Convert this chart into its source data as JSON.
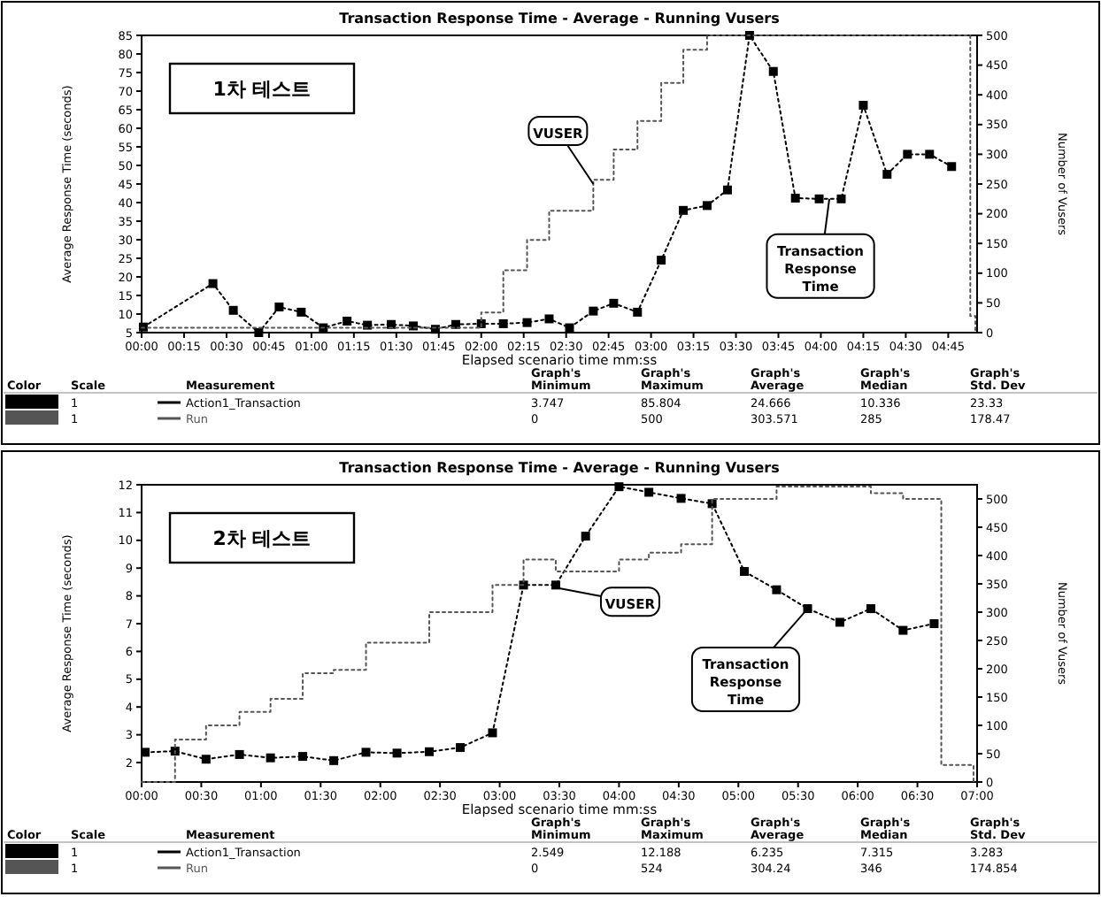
{
  "chart_data": [
    {
      "type": "line",
      "title": "Transaction Response Time - Average - Running Vusers",
      "xlabel": "Elapsed scenario time mm:ss",
      "ylabel": "Average Response Time (seconds)",
      "y2label": "Number of Vusers",
      "xlim": [
        0,
        4.92
      ],
      "ylim": [
        5,
        85
      ],
      "y2lim": [
        0,
        500
      ],
      "xticks": [
        {
          "value": 0,
          "label": "00:00"
        },
        {
          "value": 0.25,
          "label": "00:15"
        },
        {
          "value": 0.5,
          "label": "00:30"
        },
        {
          "value": 0.75,
          "label": "00:45"
        },
        {
          "value": 1,
          "label": "01:00"
        },
        {
          "value": 1.25,
          "label": "01:15"
        },
        {
          "value": 1.5,
          "label": "01:30"
        },
        {
          "value": 1.75,
          "label": "01:45"
        },
        {
          "value": 2,
          "label": "02:00"
        },
        {
          "value": 2.25,
          "label": "02:15"
        },
        {
          "value": 2.5,
          "label": "02:30"
        },
        {
          "value": 2.75,
          "label": "02:45"
        },
        {
          "value": 3,
          "label": "03:00"
        },
        {
          "value": 3.25,
          "label": "03:15"
        },
        {
          "value": 3.5,
          "label": "03:30"
        },
        {
          "value": 3.75,
          "label": "03:45"
        },
        {
          "value": 4,
          "label": "04:00"
        },
        {
          "value": 4.25,
          "label": "04:15"
        },
        {
          "value": 4.5,
          "label": "04:30"
        },
        {
          "value": 4.75,
          "label": "04:45"
        }
      ],
      "yticks": [
        5,
        10,
        15,
        20,
        25,
        30,
        35,
        40,
        45,
        50,
        55,
        60,
        65,
        70,
        75,
        80,
        85
      ],
      "y2ticks": [
        0,
        50,
        100,
        150,
        200,
        250,
        300,
        350,
        400,
        450,
        500
      ],
      "legend": "bottom",
      "series": [
        {
          "name": "Action1_Transaction",
          "type": "line",
          "color": "#000000",
          "marker": "square",
          "line_style": "dotted",
          "x": [
            0.01,
            0.42,
            0.54,
            0.69,
            0.81,
            0.94,
            1.07,
            1.21,
            1.33,
            1.47,
            1.6,
            1.73,
            1.85,
            2.0,
            2.13,
            2.27,
            2.4,
            2.52,
            2.66,
            2.78,
            2.92,
            3.06,
            3.19,
            3.33,
            3.45,
            3.58,
            3.72,
            3.85,
            3.99,
            4.12,
            4.25,
            4.39,
            4.51,
            4.64,
            4.77
          ],
          "values": [
            6.5,
            18.2,
            11,
            5,
            11.9,
            10.5,
            6.3,
            8.1,
            7,
            7.2,
            6.8,
            5.9,
            7.2,
            7.4,
            7.4,
            7.7,
            8.7,
            6.3,
            10.8,
            12.9,
            10.5,
            24.5,
            37.9,
            39.2,
            43.4,
            85,
            75.3,
            41.2,
            41,
            41,
            66.2,
            47.6,
            53,
            53,
            49.7
          ]
        },
        {
          "name": "Run",
          "type": "step",
          "axis": "y2",
          "color": "#555555",
          "marker": "none",
          "line_style": "dotted",
          "x": [
            0,
            2.0,
            2.13,
            2.27,
            2.4,
            2.66,
            2.78,
            2.92,
            3.06,
            3.19,
            3.33,
            4.88,
            4.91
          ],
          "values": [
            8,
            34,
            105,
            156,
            205,
            257,
            308,
            356,
            420,
            476,
            500,
            28,
            0
          ]
        }
      ],
      "annotations": [
        "1차 테스트",
        {
          "text": "VUSER",
          "x": 2.66,
          "y": 45
        },
        {
          "text": "Transaction Response Time",
          "x": 4.05,
          "y": 41
        },
        "Color",
        "Scale",
        "Measurement",
        "Graph's Minimum",
        "Graph's Maximum",
        "Graph's Average",
        "Graph's Median",
        "Graph's Std. Dev",
        "1",
        "3.747",
        "85.804",
        "24.666",
        "10.336",
        "23.33",
        "1",
        "0",
        "500",
        "303.571",
        "285",
        "178.47"
      ]
    },
    {
      "type": "line",
      "title": "Transaction Response Time - Average - Running Vusers",
      "xlabel": "Elapsed scenario time mm:ss",
      "ylabel": "Average Response Time (seconds)",
      "y2label": "Number of Vusers",
      "xlim": [
        0,
        7
      ],
      "ylim": [
        1.3,
        12
      ],
      "y2lim": [
        0,
        525
      ],
      "xticks": [
        {
          "value": 0,
          "label": "00:00"
        },
        {
          "value": 0.5,
          "label": "00:30"
        },
        {
          "value": 1,
          "label": "01:00"
        },
        {
          "value": 1.5,
          "label": "01:30"
        },
        {
          "value": 2,
          "label": "02:00"
        },
        {
          "value": 2.5,
          "label": "02:30"
        },
        {
          "value": 3,
          "label": "03:00"
        },
        {
          "value": 3.5,
          "label": "03:30"
        },
        {
          "value": 4,
          "label": "04:00"
        },
        {
          "value": 4.5,
          "label": "04:30"
        },
        {
          "value": 5,
          "label": "05:00"
        },
        {
          "value": 5.5,
          "label": "05:30"
        },
        {
          "value": 6,
          "label": "06:00"
        },
        {
          "value": 6.5,
          "label": "06:30"
        },
        {
          "value": 7,
          "label": "07:00"
        }
      ],
      "yticks": [
        2,
        3,
        4,
        5,
        6,
        7,
        8,
        9,
        10,
        11,
        12
      ],
      "y2ticks": [
        0,
        50,
        100,
        150,
        200,
        250,
        300,
        350,
        400,
        450,
        500
      ],
      "legend": "bottom",
      "series": [
        {
          "name": "Action1_Transaction",
          "type": "line",
          "color": "#000000",
          "marker": "square",
          "line_style": "dotted",
          "x": [
            0.03,
            0.28,
            0.54,
            0.82,
            1.08,
            1.35,
            1.61,
            1.88,
            2.14,
            2.41,
            2.67,
            2.94,
            3.2,
            3.47,
            3.72,
            4.0,
            4.25,
            4.52,
            4.78,
            5.05,
            5.32,
            5.58,
            5.85,
            6.11,
            6.38,
            6.64
          ],
          "values": [
            2.37,
            2.41,
            2.12,
            2.29,
            2.17,
            2.22,
            2.07,
            2.37,
            2.34,
            2.39,
            2.54,
            3.07,
            8.39,
            8.39,
            10.15,
            11.93,
            11.73,
            11.51,
            11.32,
            8.88,
            8.22,
            7.54,
            7.05,
            7.54,
            6.76,
            7.0
          ]
        },
        {
          "name": "Run",
          "type": "step",
          "axis": "y2",
          "color": "#555555",
          "marker": "none",
          "line_style": "dotted",
          "x": [
            0,
            0.28,
            0.54,
            0.82,
            1.08,
            1.35,
            1.61,
            1.88,
            2.41,
            2.94,
            3.2,
            3.47,
            4.0,
            4.25,
            4.52,
            4.78,
            5.32,
            6.11,
            6.38,
            6.7,
            6.97
          ],
          "values": [
            0,
            75,
            100,
            124,
            147,
            192,
            198,
            246,
            300,
            348,
            393,
            372,
            393,
            405,
            420,
            500,
            522,
            510,
            500,
            30,
            0
          ]
        }
      ],
      "annotations": [
        "2차 테스트",
        {
          "text": "VUSER",
          "x": 3.47,
          "y": 8.3
        },
        {
          "text": "Transaction Response Time",
          "x": 5.58,
          "y": 7.54
        },
        "Color",
        "Scale",
        "Measurement",
        "Graph's Minimum",
        "Graph's Maximum",
        "Graph's Average",
        "Graph's Median",
        "Graph's Std. Dev",
        "1",
        "2.549",
        "12.188",
        "6.235",
        "7.315",
        "3.283",
        "1",
        "0",
        "524",
        "304.24",
        "346",
        "174.854"
      ]
    }
  ]
}
